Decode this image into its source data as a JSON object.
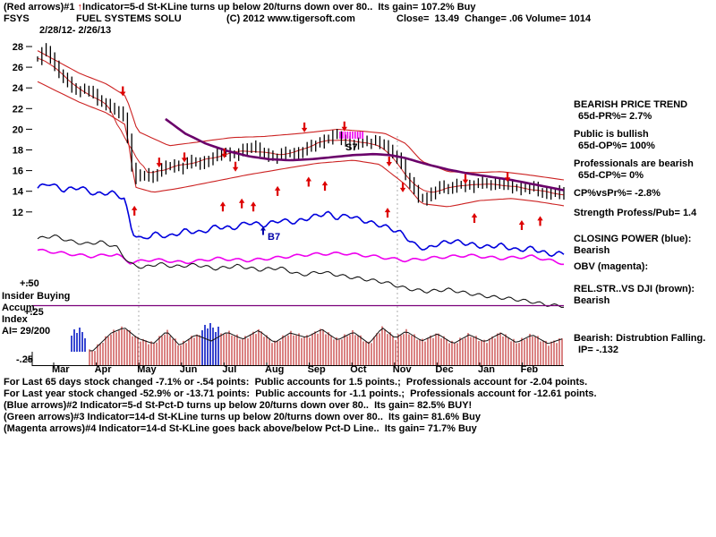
{
  "header": {
    "red_note": {
      "prefix": "(Red arrows)#1 ",
      "arrow": "↑",
      "text": "Indicator=5-d St-KLine turns up below 20/turns down over 80..  Its gain= 107.2% Buy"
    },
    "ticker": "FSYS",
    "company": "FUEL SYSTEMS SOLU",
    "copyright": "(C) 2012 www.tigersoft.com",
    "quote": "Close=  13.49  Change= .06 Volume= 1014",
    "date_range": "2/28/12- 2/26/13"
  },
  "right_panel": {
    "trend_title": "BEARISH PRICE TREND",
    "pr": "65d-PR%= 2.7%",
    "public_line": "Public is bullish",
    "op": "65d-OP%= 100%",
    "prof_line": "Professionals are bearish",
    "cp": "65d-CP%= 0%",
    "cp_vs_pr": "CP%vsPr%= -2.8%",
    "strength": "Strength Profess/Pub= 1.4",
    "closing_power_title": "CLOSING POWER (blue):",
    "closing_power_status": "Bearish",
    "obv_title": "OBV (magenta):",
    "rel_str_title": "REL.STR..VS DJI (brown):",
    "rel_str_status": "Bearish",
    "accum_status": "Bearish: Distrubtion Falling.",
    "ip": "IP= -.132"
  },
  "left_labels": {
    "plus50": "+.50",
    "insider": "Insider Buying",
    "accum": "Accum",
    "plus25": "+.25",
    "index": "Index",
    "ai": "AI= 29/200",
    "minus25": "-.25"
  },
  "footer": {
    "lines": [
      "For Last 65 days stock changed -7.1% or -.54 points:  Public accounts for 1.5 points.;  Professionals account for -2.04 points.",
      "For Last year stock changed -52.9% or -13.71 points:  Public accounts for -1.1 points.;  Professionals account for -12.61 points.",
      "(Blue arrows)#2 Indicator=5-d St-Pct-D turns up below 20/turns down over 80..  Its gain= 82.5% BUY!",
      "(Green arrows)#3 Indicator=14-d St-KLine turns up below 20/turns down over 80..  Its gain= 81.6% Buy",
      "(Magenta arrows)#4 Indicator=14-d St-KLine goes back above/below Pct-D Line..  Its gain= 71.7% Buy"
    ]
  },
  "chart_data": {
    "type": "candlestick",
    "title": "FSYS FUEL SYSTEMS SOLU 2/28/12 - 2/26/13 daily bars with price bands, Closing Power, OBV, relative strength and Accumulation Index",
    "close_value": 13.49,
    "x_axis": {
      "months": [
        "Mar",
        "Apr",
        "May",
        "Jun",
        "Jul",
        "Aug",
        "Sep",
        "Oct",
        "Nov",
        "Dec",
        "Jan",
        "Feb"
      ]
    },
    "y_axis": {
      "ticks": [
        28,
        26,
        24,
        22,
        20,
        18,
        16,
        14,
        12
      ],
      "extra_tick_labels": [
        "+.50",
        "+.25",
        "-.25"
      ]
    },
    "series": {
      "close_anchors": [
        [
          0,
          26.8
        ],
        [
          0.015,
          27.9
        ],
        [
          0.035,
          25.8
        ],
        [
          0.055,
          24.6
        ],
        [
          0.075,
          23.6
        ],
        [
          0.095,
          23.9
        ],
        [
          0.115,
          22.8
        ],
        [
          0.135,
          22.2
        ],
        [
          0.155,
          21.6
        ],
        [
          0.168,
          20.8
        ],
        [
          0.175,
          16.8
        ],
        [
          0.185,
          15.2
        ],
        [
          0.2,
          15.8
        ],
        [
          0.215,
          15.2
        ],
        [
          0.23,
          16
        ],
        [
          0.25,
          16.6
        ],
        [
          0.27,
          16.2
        ],
        [
          0.29,
          17
        ],
        [
          0.31,
          16.6
        ],
        [
          0.33,
          17.2
        ],
        [
          0.35,
          17.8
        ],
        [
          0.37,
          17.4
        ],
        [
          0.39,
          18
        ],
        [
          0.41,
          18.4
        ],
        [
          0.43,
          17.6
        ],
        [
          0.45,
          17.2
        ],
        [
          0.47,
          17.8
        ],
        [
          0.49,
          17.5
        ],
        [
          0.51,
          18.2
        ],
        [
          0.53,
          18.6
        ],
        [
          0.55,
          19
        ],
        [
          0.565,
          19.6
        ],
        [
          0.58,
          18.9
        ],
        [
          0.6,
          18.4
        ],
        [
          0.615,
          19
        ],
        [
          0.63,
          18.6
        ],
        [
          0.645,
          18.9
        ],
        [
          0.66,
          18.3
        ],
        [
          0.675,
          17.6
        ],
        [
          0.69,
          16.8
        ],
        [
          0.7,
          15.4
        ],
        [
          0.71,
          14.6
        ],
        [
          0.72,
          13.6
        ],
        [
          0.735,
          13.1
        ],
        [
          0.75,
          13.9
        ],
        [
          0.765,
          14.5
        ],
        [
          0.78,
          14.2
        ],
        [
          0.8,
          14.7
        ],
        [
          0.82,
          14.4
        ],
        [
          0.84,
          14.9
        ],
        [
          0.86,
          14.6
        ],
        [
          0.88,
          14.8
        ],
        [
          0.9,
          14.4
        ],
        [
          0.92,
          14.2
        ],
        [
          0.94,
          14.5
        ],
        [
          0.955,
          13.9
        ],
        [
          0.97,
          13.7
        ],
        [
          0.985,
          14.1
        ],
        [
          1,
          13.49
        ]
      ],
      "upper_band_anchors": [
        [
          0,
          27.6
        ],
        [
          0.08,
          25.4
        ],
        [
          0.13,
          24.4
        ],
        [
          0.168,
          23.2
        ],
        [
          0.19,
          19.8
        ],
        [
          0.25,
          18.4
        ],
        [
          0.31,
          18.8
        ],
        [
          0.37,
          19.2
        ],
        [
          0.43,
          19.3
        ],
        [
          0.5,
          19.6
        ],
        [
          0.57,
          20
        ],
        [
          0.62,
          19.8
        ],
        [
          0.66,
          19.6
        ],
        [
          0.7,
          18.6
        ],
        [
          0.73,
          16.9
        ],
        [
          0.78,
          15.9
        ],
        [
          0.83,
          15.8
        ],
        [
          0.88,
          15.9
        ],
        [
          0.93,
          15.6
        ],
        [
          1,
          15.1
        ]
      ],
      "lower_band_anchors": [
        [
          0,
          24.6
        ],
        [
          0.08,
          22.6
        ],
        [
          0.13,
          21.6
        ],
        [
          0.168,
          20.4
        ],
        [
          0.185,
          14.4
        ],
        [
          0.22,
          13.9
        ],
        [
          0.27,
          14.3
        ],
        [
          0.33,
          14.9
        ],
        [
          0.4,
          15.6
        ],
        [
          0.47,
          16.2
        ],
        [
          0.53,
          16.7
        ],
        [
          0.6,
          17
        ],
        [
          0.65,
          16.6
        ],
        [
          0.7,
          14.6
        ],
        [
          0.73,
          12.8
        ],
        [
          0.78,
          12.5
        ],
        [
          0.84,
          13.1
        ],
        [
          0.9,
          13.3
        ],
        [
          0.95,
          13
        ],
        [
          1,
          12.6
        ]
      ],
      "ma_anchors": [
        [
          0.243,
          21
        ],
        [
          0.28,
          19.6
        ],
        [
          0.32,
          18.6
        ],
        [
          0.36,
          17.9
        ],
        [
          0.4,
          17.4
        ],
        [
          0.44,
          17.1
        ],
        [
          0.48,
          17
        ],
        [
          0.52,
          17.1
        ],
        [
          0.56,
          17.3
        ],
        [
          0.6,
          17.5
        ],
        [
          0.64,
          17.6
        ],
        [
          0.67,
          17.5
        ],
        [
          0.7,
          17.2
        ],
        [
          0.74,
          16.6
        ],
        [
          0.78,
          16.1
        ],
        [
          0.82,
          15.7
        ],
        [
          0.86,
          15.4
        ],
        [
          0.9,
          15.1
        ],
        [
          0.94,
          14.7
        ],
        [
          1,
          14.1
        ]
      ],
      "closing_power_anchors": [
        [
          0,
          14.3
        ],
        [
          0.02,
          14.8
        ],
        [
          0.05,
          14.1
        ],
        [
          0.08,
          14.4
        ],
        [
          0.11,
          13.7
        ],
        [
          0.14,
          13.9
        ],
        [
          0.165,
          13.3
        ],
        [
          0.18,
          10
        ],
        [
          0.2,
          9.3
        ],
        [
          0.22,
          9.9
        ],
        [
          0.25,
          9.6
        ],
        [
          0.28,
          10.2
        ],
        [
          0.31,
          10
        ],
        [
          0.34,
          10.6
        ],
        [
          0.37,
          10.4
        ],
        [
          0.4,
          11
        ],
        [
          0.43,
          10.7
        ],
        [
          0.46,
          11.2
        ],
        [
          0.49,
          11
        ],
        [
          0.52,
          11.5
        ],
        [
          0.55,
          11.9
        ],
        [
          0.57,
          11.4
        ],
        [
          0.59,
          11.7
        ],
        [
          0.61,
          11.3
        ],
        [
          0.63,
          11
        ],
        [
          0.66,
          10.6
        ],
        [
          0.69,
          10
        ],
        [
          0.72,
          8.7
        ],
        [
          0.74,
          8.4
        ],
        [
          0.76,
          8.9
        ],
        [
          0.79,
          9.2
        ],
        [
          0.82,
          8.9
        ],
        [
          0.85,
          8.6
        ],
        [
          0.88,
          8.8
        ],
        [
          0.91,
          8.3
        ],
        [
          0.94,
          8.5
        ],
        [
          0.97,
          7.9
        ],
        [
          1,
          8
        ]
      ],
      "obv_anchors": [
        [
          0,
          8.3
        ],
        [
          0.05,
          8
        ],
        [
          0.1,
          7.7
        ],
        [
          0.15,
          7.9
        ],
        [
          0.175,
          7.1
        ],
        [
          0.22,
          7.4
        ],
        [
          0.28,
          7.1
        ],
        [
          0.34,
          7.5
        ],
        [
          0.4,
          7.3
        ],
        [
          0.46,
          7.6
        ],
        [
          0.52,
          7.9
        ],
        [
          0.58,
          8
        ],
        [
          0.64,
          7.7
        ],
        [
          0.7,
          7.3
        ],
        [
          0.76,
          7.6
        ],
        [
          0.82,
          7.8
        ],
        [
          0.88,
          7.5
        ],
        [
          0.94,
          7.7
        ],
        [
          1,
          7
        ]
      ],
      "rel_strength_anchors": [
        [
          0,
          9.4
        ],
        [
          0.03,
          9.7
        ],
        [
          0.06,
          9.2
        ],
        [
          0.09,
          8.9
        ],
        [
          0.12,
          9.1
        ],
        [
          0.15,
          8.6
        ],
        [
          0.175,
          7
        ],
        [
          0.2,
          6.6
        ],
        [
          0.23,
          7
        ],
        [
          0.26,
          6.7
        ],
        [
          0.3,
          6.9
        ],
        [
          0.34,
          6.5
        ],
        [
          0.38,
          6.8
        ],
        [
          0.42,
          6.4
        ],
        [
          0.46,
          6.6
        ],
        [
          0.5,
          5.9
        ],
        [
          0.54,
          6.2
        ],
        [
          0.58,
          5.8
        ],
        [
          0.62,
          5.5
        ],
        [
          0.66,
          5.2
        ],
        [
          0.7,
          4.6
        ],
        [
          0.74,
          4.3
        ],
        [
          0.78,
          4.5
        ],
        [
          0.82,
          4.1
        ],
        [
          0.86,
          3.8
        ],
        [
          0.9,
          3.6
        ],
        [
          0.94,
          3.3
        ],
        [
          0.97,
          3
        ],
        [
          1,
          2.9
        ]
      ]
    },
    "accum_panel": {
      "baseline_y": 408,
      "envelope_y_anchors": [
        [
          0.105,
          392
        ],
        [
          0.14,
          372
        ],
        [
          0.165,
          366
        ],
        [
          0.19,
          378
        ],
        [
          0.22,
          384
        ],
        [
          0.245,
          370
        ],
        [
          0.27,
          386
        ],
        [
          0.3,
          374
        ],
        [
          0.33,
          381
        ],
        [
          0.36,
          371
        ],
        [
          0.39,
          379
        ],
        [
          0.42,
          369
        ],
        [
          0.45,
          383
        ],
        [
          0.48,
          372
        ],
        [
          0.51,
          377
        ],
        [
          0.54,
          368
        ],
        [
          0.57,
          380
        ],
        [
          0.6,
          371
        ],
        [
          0.63,
          384
        ],
        [
          0.655,
          366
        ],
        [
          0.68,
          378
        ],
        [
          0.7,
          370
        ],
        [
          0.73,
          381
        ],
        [
          0.76,
          373
        ],
        [
          0.79,
          384
        ],
        [
          0.82,
          374
        ],
        [
          0.85,
          382
        ],
        [
          0.88,
          372
        ],
        [
          0.91,
          383
        ],
        [
          0.94,
          374
        ],
        [
          0.97,
          384
        ],
        [
          1,
          378
        ]
      ],
      "blue_volume_bars": {
        "cluster1": {
          "baseline": 393,
          "bars": [
            [
              80,
              375
            ],
            [
              83,
              368
            ],
            [
              86,
              372
            ],
            [
              89,
              366
            ],
            [
              92,
              371
            ],
            [
              95,
              378
            ]
          ]
        },
        "cluster2": {
          "baseline": 408,
          "bars": [
            [
              226,
              369
            ],
            [
              229,
              363
            ],
            [
              232,
              367
            ],
            [
              235,
              361
            ],
            [
              238,
              366
            ],
            [
              241,
              371
            ],
            [
              244,
              365
            ]
          ]
        }
      }
    },
    "arrows": {
      "down": [
        [
          0.162,
          23.2
        ],
        [
          0.231,
          16.3
        ],
        [
          0.279,
          16.8
        ],
        [
          0.355,
          17.2
        ],
        [
          0.376,
          15.9
        ],
        [
          0.507,
          19.7
        ],
        [
          0.583,
          19.8
        ],
        [
          0.668,
          16.4
        ],
        [
          0.694,
          13.9
        ],
        [
          0.813,
          14.7
        ],
        [
          0.893,
          14.9
        ]
      ],
      "up": [
        [
          0.184,
          12.6
        ],
        [
          0.352,
          13
        ],
        [
          0.388,
          13.3
        ],
        [
          0.41,
          13
        ],
        [
          0.456,
          14.5
        ],
        [
          0.515,
          15.4
        ],
        [
          0.546,
          15
        ],
        [
          0.665,
          12.4
        ],
        [
          0.83,
          11.9
        ],
        [
          0.92,
          11.2
        ],
        [
          0.955,
          11.6
        ]
      ]
    },
    "markers": {
      "s7_label": "S7",
      "b7_label": "B7"
    },
    "colors": {
      "candle": "#000000",
      "band": "#cc2222",
      "ma": "#6a006a",
      "closing_power": "#0000dd",
      "obv": "#ee00ee",
      "rel_strength": "#151515",
      "arrow": "#dd0000",
      "accum_bar": "#c23030",
      "accum_envelope": "#111111",
      "volume_blue": "#2233cc",
      "insider_line": "#7a007a"
    }
  }
}
